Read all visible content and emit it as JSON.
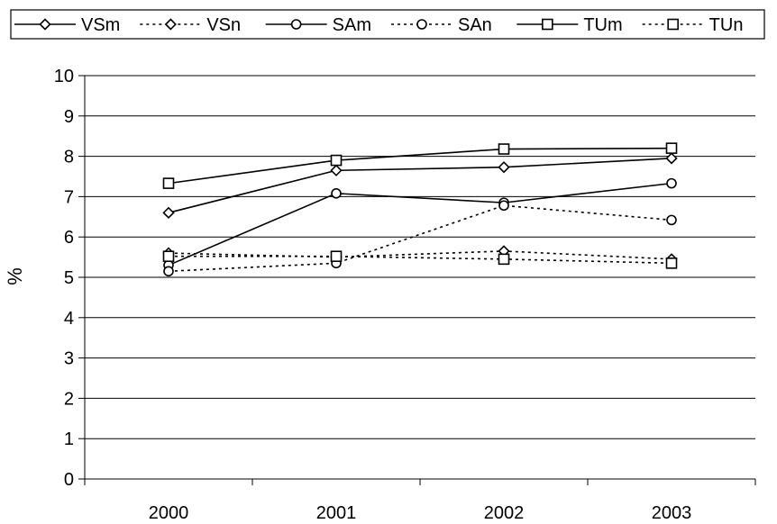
{
  "chart_data": {
    "type": "line",
    "title": "",
    "xlabel": "",
    "ylabel": "%",
    "categories": [
      "2000",
      "2001",
      "2002",
      "2003"
    ],
    "ylim": [
      0,
      10
    ],
    "yticks": [
      "0",
      "1",
      "2",
      "3",
      "4",
      "5",
      "6",
      "7",
      "8",
      "9",
      "10"
    ],
    "grid": true,
    "legend_position": "top",
    "series": [
      {
        "name": "VSm",
        "marker": "diamond",
        "line": "solid",
        "values": [
          6.6,
          7.65,
          7.73,
          7.95
        ]
      },
      {
        "name": "VSn",
        "marker": "diamond",
        "line": "dotted",
        "values": [
          5.6,
          5.5,
          5.65,
          5.45
        ]
      },
      {
        "name": "SAm",
        "marker": "circle",
        "line": "solid",
        "values": [
          5.3,
          7.08,
          6.85,
          7.33
        ]
      },
      {
        "name": "SAn",
        "marker": "circle",
        "line": "dotted",
        "values": [
          5.15,
          5.35,
          6.78,
          6.42
        ]
      },
      {
        "name": "TUm",
        "marker": "square",
        "line": "solid",
        "values": [
          7.33,
          7.9,
          8.18,
          8.2
        ]
      },
      {
        "name": "TUn",
        "marker": "square",
        "line": "dotted",
        "values": [
          5.52,
          5.52,
          5.45,
          5.35
        ]
      }
    ]
  }
}
